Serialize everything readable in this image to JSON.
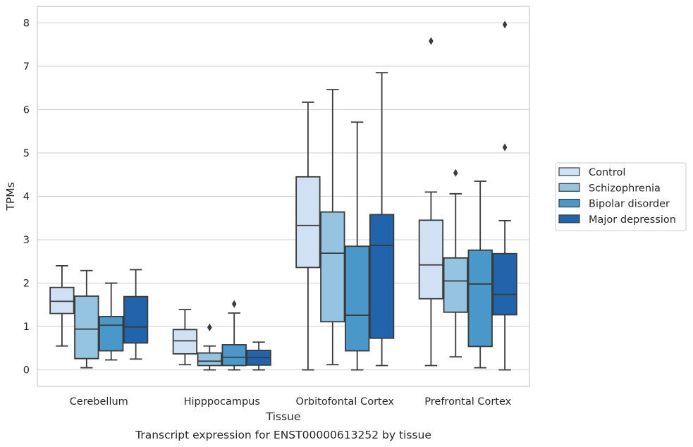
{
  "chart_data": {
    "type": "boxplot",
    "caption": "Transcript expression for ENST00000613252 by tissue",
    "xlabel": "Tissue",
    "ylabel": "TPMs",
    "ylim": [
      -0.38,
      8.38
    ],
    "yticks": [
      0,
      1,
      2,
      3,
      4,
      5,
      6,
      7,
      8
    ],
    "grid": true,
    "legend_position": "right",
    "categories": [
      "Cerebellum",
      "Hipppocampus",
      "Orbitofontal Cortex",
      "Prefrontal Cortex"
    ],
    "series": [
      {
        "name": "Control",
        "color": "#cfe1f2",
        "boxes": [
          {
            "whisker_low": 0.55,
            "q1": 1.3,
            "median": 1.58,
            "q3": 1.9,
            "whisker_high": 2.4,
            "outliers": []
          },
          {
            "whisker_low": 0.12,
            "q1": 0.37,
            "median": 0.67,
            "q3": 0.93,
            "whisker_high": 1.39,
            "outliers": []
          },
          {
            "whisker_low": 0.0,
            "q1": 2.36,
            "median": 3.33,
            "q3": 4.45,
            "whisker_high": 6.17,
            "outliers": []
          },
          {
            "whisker_low": 0.1,
            "q1": 1.64,
            "median": 2.42,
            "q3": 3.45,
            "whisker_high": 4.1,
            "outliers": [
              7.58
            ]
          }
        ]
      },
      {
        "name": "Schizophrenia",
        "color": "#94c4df",
        "boxes": [
          {
            "whisker_low": 0.05,
            "q1": 0.26,
            "median": 0.94,
            "q3": 1.7,
            "whisker_high": 2.29,
            "outliers": []
          },
          {
            "whisker_low": 0.0,
            "q1": 0.1,
            "median": 0.2,
            "q3": 0.39,
            "whisker_high": 0.55,
            "outliers": [
              0.98
            ]
          },
          {
            "whisker_low": 0.12,
            "q1": 1.11,
            "median": 2.69,
            "q3": 3.64,
            "whisker_high": 6.46,
            "outliers": []
          },
          {
            "whisker_low": 0.3,
            "q1": 1.33,
            "median": 2.05,
            "q3": 2.58,
            "whisker_high": 4.06,
            "outliers": [
              4.54
            ]
          }
        ]
      },
      {
        "name": "Bipolar disorder",
        "color": "#4a98c9",
        "boxes": [
          {
            "whisker_low": 0.23,
            "q1": 0.44,
            "median": 1.03,
            "q3": 1.23,
            "whisker_high": 2.0,
            "outliers": []
          },
          {
            "whisker_low": 0.0,
            "q1": 0.1,
            "median": 0.29,
            "q3": 0.58,
            "whisker_high": 1.31,
            "outliers": [
              1.52
            ]
          },
          {
            "whisker_low": 0.0,
            "q1": 0.44,
            "median": 1.26,
            "q3": 2.85,
            "whisker_high": 5.71,
            "outliers": []
          },
          {
            "whisker_low": 0.05,
            "q1": 0.54,
            "median": 1.98,
            "q3": 2.76,
            "whisker_high": 4.35,
            "outliers": []
          }
        ]
      },
      {
        "name": "Major depression",
        "color": "#2164ab",
        "boxes": [
          {
            "whisker_low": 0.25,
            "q1": 0.62,
            "median": 0.99,
            "q3": 1.69,
            "whisker_high": 2.31,
            "outliers": []
          },
          {
            "whisker_low": 0.0,
            "q1": 0.11,
            "median": 0.28,
            "q3": 0.45,
            "whisker_high": 0.64,
            "outliers": []
          },
          {
            "whisker_low": 0.1,
            "q1": 0.73,
            "median": 2.87,
            "q3": 3.58,
            "whisker_high": 6.85,
            "outliers": []
          },
          {
            "whisker_low": 0.0,
            "q1": 1.27,
            "median": 1.74,
            "q3": 2.68,
            "whisker_high": 3.44,
            "outliers": [
              5.13,
              7.96
            ]
          }
        ]
      }
    ]
  }
}
